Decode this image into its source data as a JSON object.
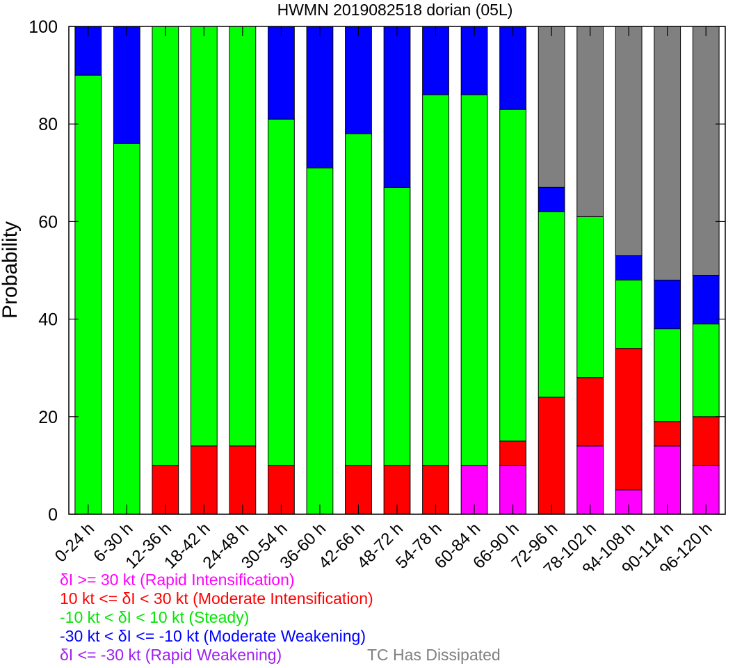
{
  "chart_data": {
    "type": "bar",
    "stacked": true,
    "title": "HWMN 2019082518 dorian (05L)",
    "xlabel": "",
    "ylabel": "Probability",
    "ylim": [
      0,
      100
    ],
    "yticks": [
      "0",
      "20",
      "40",
      "60",
      "80",
      "100"
    ],
    "grid": false,
    "categories": [
      "0-24 h",
      "6-30 h",
      "12-36 h",
      "18-42 h",
      "24-48 h",
      "30-54 h",
      "36-60 h",
      "42-66 h",
      "48-72 h",
      "54-78 h",
      "60-84 h",
      "66-90 h",
      "72-96 h",
      "78-102 h",
      "84-108 h",
      "90-114 h",
      "96-120 h"
    ],
    "series": [
      {
        "name": "Rapid Intensification",
        "color": "#ff00ff",
        "values": [
          0,
          0,
          0,
          0,
          0,
          0,
          0,
          0,
          0,
          0,
          10,
          10,
          0,
          14,
          5,
          14,
          10
        ]
      },
      {
        "name": "Moderate Intensification",
        "color": "#ff0000",
        "values": [
          0,
          0,
          10,
          14,
          14,
          10,
          0,
          10,
          10,
          10,
          0,
          5,
          24,
          14,
          29,
          5,
          10
        ]
      },
      {
        "name": "Steady",
        "color": "#00ff00",
        "values": [
          90,
          76,
          90,
          86,
          86,
          71,
          71,
          68,
          57,
          76,
          76,
          68,
          38,
          33,
          14,
          19,
          19
        ]
      },
      {
        "name": "Moderate Weakening",
        "color": "#0000ff",
        "values": [
          10,
          24,
          0,
          0,
          0,
          19,
          29,
          22,
          33,
          14,
          14,
          17,
          5,
          0,
          5,
          10,
          10
        ]
      },
      {
        "name": "Rapid Weakening",
        "color": "#a020f0",
        "values": [
          0,
          0,
          0,
          0,
          0,
          0,
          0,
          0,
          0,
          0,
          0,
          0,
          0,
          0,
          0,
          0,
          0
        ]
      },
      {
        "name": "TC Has Dissipated",
        "color": "#808080",
        "values": [
          0,
          0,
          0,
          0,
          0,
          0,
          0,
          0,
          0,
          0,
          0,
          0,
          33,
          39,
          47,
          52,
          51
        ]
      }
    ]
  },
  "legend": {
    "rapid_intensification": "δI >= 30 kt (Rapid Intensification)",
    "moderate_intensification": "10 kt <= δI < 30 kt (Moderate Intensification)",
    "steady": "-10 kt < δI < 10 kt (Steady)",
    "moderate_weakening": "-30 kt < δI <= -10 kt (Moderate Weakening)",
    "rapid_weakening": "δI <= -30 kt (Rapid Weakening)",
    "dissipated": "TC Has Dissipated"
  }
}
